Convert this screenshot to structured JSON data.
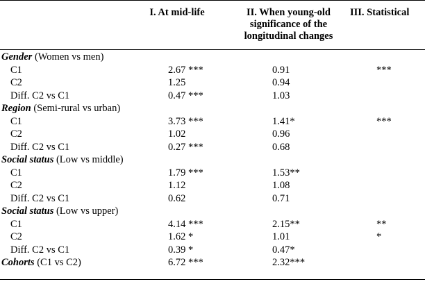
{
  "headers": {
    "col1": "I. At mid-life",
    "col2_line1": "II. When young-old",
    "col2_line2": "significance of the",
    "col2_line3": "longitudinal changes",
    "col3": "III. Statistical"
  },
  "groups": [
    {
      "name": "Gender",
      "detail": " (Women vs men)",
      "rows": [
        {
          "label": "C1",
          "v1": "2.67 ***",
          "v2": "0.91",
          "v3": "***"
        },
        {
          "label": "C2",
          "v1": "1.25",
          "v2": "0.94",
          "v3": ""
        },
        {
          "label": "Diff. C2 vs C1",
          "v1": "0.47 ***",
          "v2": "1.03",
          "v3": ""
        }
      ]
    },
    {
      "name": "Region",
      "detail": " (Semi-rural vs urban)",
      "rows": [
        {
          "label": "C1",
          "v1": "3.73 ***",
          "v2": "1.41*",
          "v3": "***"
        },
        {
          "label": "C2",
          "v1": "1.02",
          "v2": "0.96",
          "v3": ""
        },
        {
          "label": "Diff. C2 vs C1",
          "v1": "0.27 ***",
          "v2": "0.68",
          "v3": ""
        }
      ]
    },
    {
      "name": "Social status",
      "detail": " (Low vs middle)",
      "rows": [
        {
          "label": "C1",
          "v1": "1.79 ***",
          "v2": "1.53**",
          "v3": ""
        },
        {
          "label": "C2",
          "v1": "1.12",
          "v2": "1.08",
          "v3": ""
        },
        {
          "label": "Diff. C2 vs C1",
          "v1": "0.62",
          "v2": "0.71",
          "v3": ""
        }
      ]
    },
    {
      "name": "Social status",
      "detail": " (Low vs upper)",
      "rows": [
        {
          "label": "C1",
          "v1": "4.14 ***",
          "v2": "2.15**",
          "v3": "**"
        },
        {
          "label": "C2",
          "v1": "1.62 *",
          "v2": "1.01",
          "v3": "*"
        },
        {
          "label": "Diff. C2 vs C1",
          "v1": "0.39 *",
          "v2": "0.47*",
          "v3": ""
        }
      ]
    },
    {
      "name": "Cohorts",
      "detail": " (C1 vs C2)",
      "v1": "6.72 ***",
      "v2": "2.32***",
      "v3": "",
      "rows": []
    }
  ]
}
